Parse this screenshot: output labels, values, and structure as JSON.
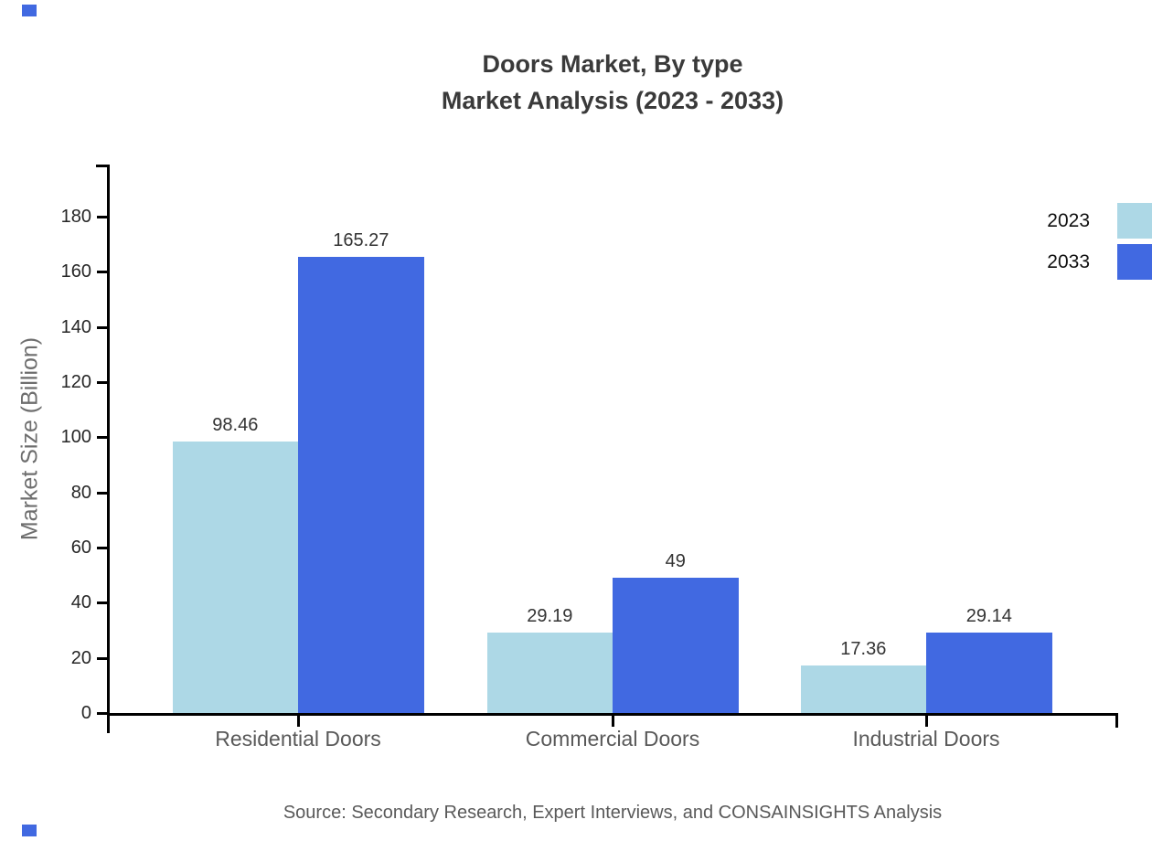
{
  "title": {
    "line1": "Doors Market, By type",
    "line2": "Market Analysis (2023 - 2033)"
  },
  "chart_data": {
    "type": "bar",
    "categories": [
      "Residential Doors",
      "Commercial Doors",
      "Industrial Doors"
    ],
    "series": [
      {
        "name": "2023",
        "color": "#ADD8E6",
        "values": [
          98.46,
          29.19,
          17.36
        ]
      },
      {
        "name": "2033",
        "color": "#4169E1",
        "values": [
          165.27,
          49,
          29.14
        ]
      }
    ],
    "title": "Doors Market, By type Market Analysis (2023 - 2033)",
    "xlabel": "",
    "ylabel": "Market Size (Billion)",
    "ylim": [
      0,
      180
    ],
    "yticks": [
      0,
      20,
      40,
      60,
      80,
      100,
      120,
      140,
      160,
      180
    ],
    "grid": false,
    "legend_position": "top-right",
    "value_labels": [
      "98.46",
      "165.27",
      "29.19",
      "49",
      "17.36",
      "29.14"
    ]
  },
  "legend": {
    "items": [
      {
        "label": "2023",
        "color": "#ADD8E6"
      },
      {
        "label": "2033",
        "color": "#4169E1"
      }
    ]
  },
  "source": "Source: Secondary Research, Expert Interviews, and CONSAINSIGHTS Analysis",
  "colors": {
    "axis": "#000000",
    "title_text": "#3a3a3a",
    "tick_text": "#262626",
    "category_text": "#595959",
    "ylabel_text": "#6e6e6e",
    "value_text": "#333333",
    "source_text": "#595959",
    "corner_marker": "#4169E1"
  }
}
